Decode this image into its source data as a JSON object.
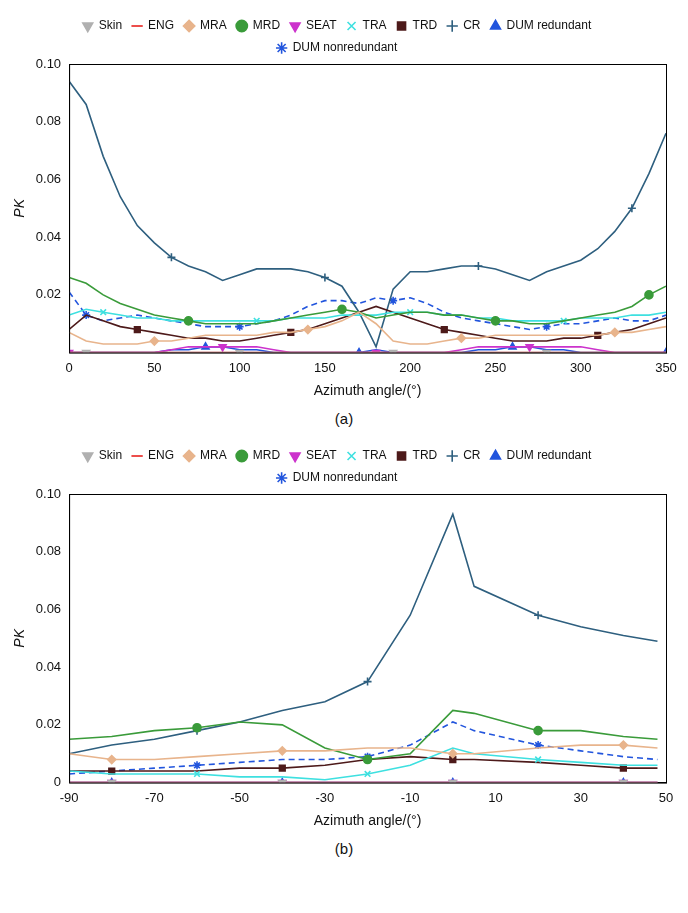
{
  "chart_data": [
    {
      "type": "line",
      "annotation": "(a)",
      "x_label": "Azimuth angle/(°)",
      "y_label": "PK",
      "xlim": [
        0,
        350
      ],
      "xticks": [
        0,
        50,
        100,
        150,
        200,
        250,
        300,
        350
      ],
      "ylim": [
        0,
        0.1
      ],
      "yticks": [
        0.02,
        0.04,
        0.06,
        0.08,
        {
          "value": 0.1,
          "label": "0.10"
        }
      ],
      "grid": false,
      "legend": "top",
      "x": [
        0,
        10,
        20,
        30,
        40,
        50,
        60,
        70,
        80,
        90,
        100,
        110,
        120,
        130,
        140,
        150,
        160,
        170,
        180,
        190,
        200,
        210,
        220,
        230,
        240,
        250,
        260,
        270,
        280,
        290,
        300,
        310,
        320,
        330,
        340,
        350
      ],
      "series": [
        {
          "name": "Skin",
          "color": "#b0b0b0",
          "marker": "triangle_down",
          "line_style": "solid",
          "values": [
            0,
            0,
            0,
            0,
            0,
            0,
            0,
            0,
            0,
            0,
            0,
            0,
            0,
            0,
            0,
            0,
            0,
            0,
            0,
            0,
            0,
            0,
            0,
            0,
            0,
            0,
            0,
            0,
            0,
            0,
            0,
            0,
            0,
            0,
            0,
            0
          ]
        },
        {
          "name": "ENG",
          "color": "#e8211d",
          "marker": "none",
          "line_style": "solid",
          "values": [
            0,
            0,
            0,
            0,
            0,
            0,
            0,
            0,
            0,
            0,
            0,
            0,
            0,
            0,
            0,
            0,
            0,
            0,
            0,
            0,
            0,
            0,
            0,
            0,
            0,
            0,
            0,
            0,
            0,
            0,
            0,
            0,
            0,
            0,
            0,
            0
          ]
        },
        {
          "name": "MRA",
          "color": "#e8b48c",
          "marker": "diamond",
          "line_style": "solid",
          "values": [
            0.007,
            0.004,
            0.003,
            0.003,
            0.003,
            0.004,
            0.004,
            0.005,
            0.006,
            0.006,
            0.006,
            0.006,
            0.007,
            0.007,
            0.008,
            0.009,
            0.011,
            0.014,
            0.01,
            0.004,
            0.003,
            0.003,
            0.004,
            0.005,
            0.005,
            0.006,
            0.006,
            0.006,
            0.006,
            0.006,
            0.006,
            0.006,
            0.007,
            0.007,
            0.008,
            0.009
          ]
        },
        {
          "name": "MRD",
          "color": "#3a9b3a",
          "marker": "circle",
          "line_style": "solid",
          "values": [
            0.026,
            0.024,
            0.02,
            0.017,
            0.015,
            0.013,
            0.012,
            0.011,
            0.01,
            0.01,
            0.01,
            0.01,
            0.011,
            0.012,
            0.013,
            0.014,
            0.015,
            0.014,
            0.012,
            0.013,
            0.014,
            0.014,
            0.013,
            0.013,
            0.012,
            0.011,
            0.011,
            0.01,
            0.01,
            0.011,
            0.012,
            0.013,
            0.014,
            0.016,
            0.02,
            0.023
          ]
        },
        {
          "name": "SEAT",
          "color": "#cc33cc",
          "marker": "triangle_down",
          "line_style": "solid",
          "values": [
            0,
            0,
            0,
            0,
            0,
            0,
            0.001,
            0.002,
            0.002,
            0.002,
            0.002,
            0.002,
            0.001,
            0,
            0,
            0,
            0,
            0,
            0,
            0,
            0,
            0,
            0,
            0.001,
            0.002,
            0.002,
            0.002,
            0.002,
            0.002,
            0.002,
            0.002,
            0.001,
            0,
            0,
            0,
            0
          ]
        },
        {
          "name": "TRA",
          "color": "#3ee0e0",
          "marker": "x",
          "line_style": "solid",
          "values": [
            0.013,
            0.015,
            0.014,
            0.013,
            0.012,
            0.012,
            0.011,
            0.011,
            0.011,
            0.011,
            0.011,
            0.011,
            0.011,
            0.012,
            0.012,
            0.012,
            0.013,
            0.013,
            0.013,
            0.014,
            0.014,
            0.014,
            0.013,
            0.013,
            0.012,
            0.012,
            0.011,
            0.011,
            0.011,
            0.011,
            0.012,
            0.012,
            0.012,
            0.013,
            0.013,
            0.014
          ]
        },
        {
          "name": "TRD",
          "color": "#4d1a1a",
          "marker": "square",
          "line_style": "solid",
          "values": [
            0.008,
            0.013,
            0.011,
            0.009,
            0.008,
            0.007,
            0.006,
            0.005,
            0.005,
            0.004,
            0.004,
            0.005,
            0.006,
            0.007,
            0.008,
            0.01,
            0.012,
            0.014,
            0.016,
            0.014,
            0.012,
            0.01,
            0.008,
            0.007,
            0.006,
            0.005,
            0.004,
            0.004,
            0.004,
            0.005,
            0.005,
            0.006,
            0.007,
            0.008,
            0.01,
            0.012
          ]
        },
        {
          "name": "CR",
          "color": "#2e5f7f",
          "marker": "plus",
          "line_style": "solid",
          "values": [
            0.094,
            0.086,
            0.068,
            0.054,
            0.044,
            0.038,
            0.033,
            0.03,
            0.028,
            0.025,
            0.027,
            0.029,
            0.029,
            0.029,
            0.028,
            0.026,
            0.023,
            0.014,
            0.002,
            0.022,
            0.028,
            0.028,
            0.029,
            0.03,
            0.03,
            0.029,
            0.027,
            0.025,
            0.028,
            0.03,
            0.032,
            0.036,
            0.042,
            0.05,
            0.062,
            0.076
          ]
        },
        {
          "name": "DUM redundant",
          "color": "#2255dd",
          "marker": "triangle",
          "line_style": "solid",
          "values": [
            0,
            0,
            0,
            0,
            0,
            0,
            0.001,
            0.001,
            0.002,
            0.002,
            0.001,
            0.001,
            0,
            0,
            0,
            0,
            0,
            0,
            0.001,
            0,
            0,
            0,
            0,
            0,
            0.001,
            0.001,
            0.002,
            0.002,
            0.001,
            0.001,
            0,
            0,
            0,
            0,
            0,
            0
          ]
        },
        {
          "name": "DUM nonredundant",
          "color": "#2255dd",
          "marker": "star",
          "line_style": "dashed",
          "values": [
            0.021,
            0.013,
            0.011,
            0.012,
            0.013,
            0.012,
            0.011,
            0.01,
            0.009,
            0.009,
            0.009,
            0.01,
            0.011,
            0.013,
            0.016,
            0.018,
            0.018,
            0.017,
            0.019,
            0.018,
            0.019,
            0.017,
            0.014,
            0.012,
            0.011,
            0.01,
            0.009,
            0.008,
            0.009,
            0.01,
            0.01,
            0.011,
            0.012,
            0.011,
            0.011,
            0.013
          ]
        }
      ]
    },
    {
      "type": "line",
      "annotation": "(b)",
      "x_label": "Azimuth angle/(°)",
      "y_label": "PK",
      "xlim": [
        -90,
        50
      ],
      "xticks": [
        -90,
        -70,
        -50,
        -30,
        -10,
        10,
        30,
        50
      ],
      "ylim": [
        0,
        0.1
      ],
      "yticks": [
        0,
        0.02,
        0.04,
        0.06,
        0.08,
        {
          "value": 0.1,
          "label": "0.10"
        }
      ],
      "grid": false,
      "legend": "top",
      "x": [
        -90,
        -80,
        -70,
        -60,
        -50,
        -40,
        -30,
        -20,
        -10,
        0,
        5,
        20,
        30,
        40,
        48
      ],
      "series": [
        {
          "name": "Skin",
          "color": "#b0b0b0",
          "marker": "triangle_down",
          "line_style": "solid",
          "values": [
            0,
            0,
            0,
            0,
            0,
            0,
            0,
            0,
            0,
            0,
            0,
            0,
            0,
            0,
            0
          ]
        },
        {
          "name": "ENG",
          "color": "#e8211d",
          "marker": "none",
          "line_style": "solid",
          "values": [
            0,
            0,
            0,
            0,
            0,
            0,
            0,
            0,
            0,
            0,
            0,
            0,
            0,
            0,
            0
          ]
        },
        {
          "name": "MRA",
          "color": "#e8b48c",
          "marker": "diamond",
          "line_style": "solid",
          "values": [
            0.01,
            0.008,
            0.008,
            0.009,
            0.01,
            0.011,
            0.011,
            0.012,
            0.012,
            0.01,
            0.01,
            0.012,
            0.013,
            0.013,
            0.012
          ]
        },
        {
          "name": "MRD",
          "color": "#3a9b3a",
          "marker": "circle",
          "line_style": "solid",
          "values": [
            0.015,
            0.016,
            0.018,
            0.019,
            0.021,
            0.02,
            0.012,
            0.008,
            0.01,
            0.025,
            0.024,
            0.018,
            0.018,
            0.016,
            0.015
          ]
        },
        {
          "name": "SEAT",
          "color": "#cc33cc",
          "marker": "triangle_down",
          "line_style": "solid",
          "values": [
            0,
            0,
            0,
            0,
            0,
            0,
            0,
            0,
            0,
            0,
            0,
            0,
            0,
            0,
            0
          ]
        },
        {
          "name": "TRA",
          "color": "#3ee0e0",
          "marker": "x",
          "line_style": "solid",
          "values": [
            0.004,
            0.003,
            0.003,
            0.003,
            0.002,
            0.002,
            0.001,
            0.003,
            0.006,
            0.012,
            0.01,
            0.008,
            0.007,
            0.006,
            0.006
          ]
        },
        {
          "name": "TRD",
          "color": "#4d1a1a",
          "marker": "square",
          "line_style": "solid",
          "values": [
            0.004,
            0.004,
            0.004,
            0.004,
            0.005,
            0.005,
            0.006,
            0.008,
            0.009,
            0.008,
            0.008,
            0.007,
            0.006,
            0.005,
            0.005
          ]
        },
        {
          "name": "CR",
          "color": "#2e5f7f",
          "marker": "plus",
          "line_style": "solid",
          "values": [
            0.01,
            0.013,
            0.015,
            0.018,
            0.021,
            0.025,
            0.028,
            0.035,
            0.058,
            0.093,
            0.068,
            0.058,
            0.054,
            0.051,
            0.049
          ]
        },
        {
          "name": "DUM redundant",
          "color": "#2255dd",
          "marker": "triangle",
          "line_style": "solid",
          "values": [
            0,
            0,
            0,
            0,
            0,
            0,
            0,
            0,
            0,
            0,
            0,
            0,
            0,
            0,
            0
          ]
        },
        {
          "name": "DUM nonredundant",
          "color": "#2255dd",
          "marker": "star",
          "line_style": "dashed",
          "values": [
            0.003,
            0.004,
            0.005,
            0.006,
            0.007,
            0.008,
            0.008,
            0.009,
            0.013,
            0.021,
            0.018,
            0.013,
            0.011,
            0.009,
            0.008
          ]
        }
      ]
    }
  ]
}
